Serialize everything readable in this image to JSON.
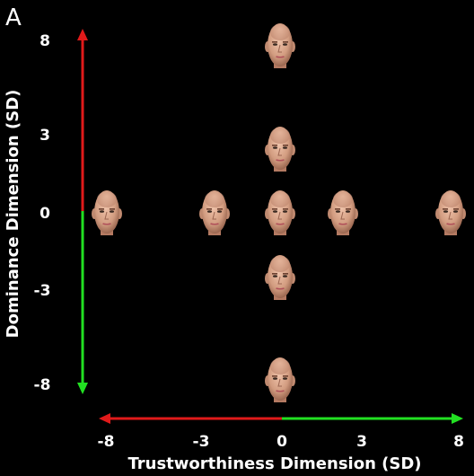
{
  "panel_label": "A",
  "x_axis": {
    "title": "Trustworthiness Dimension (SD)",
    "ticks": [
      "-8",
      "-3",
      "0",
      "3",
      "8"
    ],
    "negative_color": "#e01a1a",
    "positive_color": "#22e022"
  },
  "y_axis": {
    "title": "Dominance Dimension (SD)",
    "ticks": [
      "8",
      "3",
      "0",
      "-3",
      "-8"
    ],
    "negative_color": "#22e022",
    "positive_color": "#e01a1a"
  },
  "faces": [
    {
      "trust": 0,
      "dom": 8
    },
    {
      "trust": 0,
      "dom": 3
    },
    {
      "trust": -8,
      "dom": 0
    },
    {
      "trust": -3,
      "dom": 0
    },
    {
      "trust": 0,
      "dom": 0
    },
    {
      "trust": 3,
      "dom": 0
    },
    {
      "trust": 8,
      "dom": 0
    },
    {
      "trust": 0,
      "dom": -3
    },
    {
      "trust": 0,
      "dom": -8
    }
  ],
  "colors": {
    "background": "#000000",
    "skin": "#d9a88e",
    "skin_shadow": "#a8705a"
  }
}
